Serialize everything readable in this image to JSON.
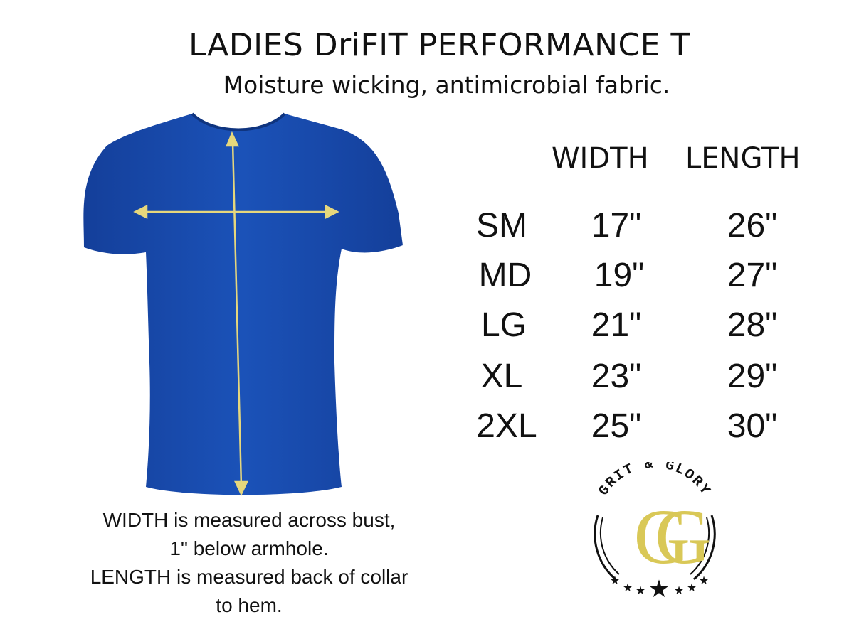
{
  "header": {
    "title": "LADIES DriFIT PERFORMANCE T",
    "subtitle": "Moisture wicking, antimicrobial fabric."
  },
  "size_table": {
    "columns": [
      "WIDTH",
      "LENGTH"
    ],
    "rows": [
      {
        "size": "SM",
        "width": "17\"",
        "length": "26\""
      },
      {
        "size": "MD",
        "width": "19\"",
        "length": "27\""
      },
      {
        "size": "LG",
        "width": "21\"",
        "length": "28\""
      },
      {
        "size": "XL",
        "width": "23\"",
        "length": "29\""
      },
      {
        "size": "2XL",
        "width": "25\"",
        "length": "30\""
      }
    ]
  },
  "caption": {
    "lines": [
      "WIDTH is measured across bust,",
      "1\" below armhole.",
      "LENGTH is measured back of collar",
      "to hem."
    ]
  },
  "logo": {
    "text": "GRIT & GLORY",
    "monogram": "GG"
  },
  "colors": {
    "shirt": "#1b4fb3",
    "arrow": "#e6d77c",
    "logo_gold": "#d9c857"
  }
}
